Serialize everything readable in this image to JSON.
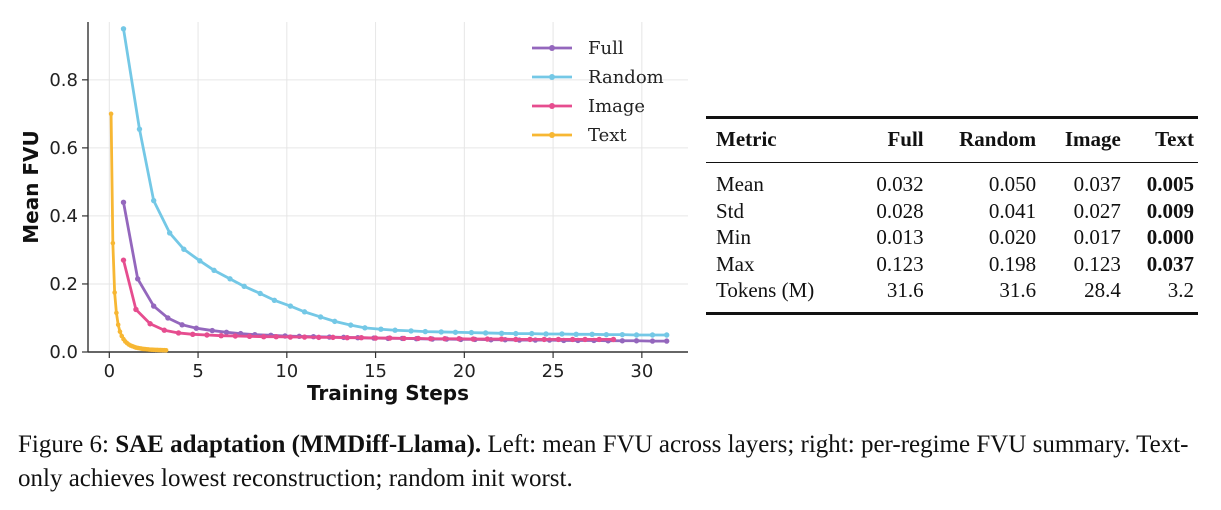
{
  "chart_data": {
    "type": "line",
    "xlabel": "Training Steps",
    "ylabel": "Mean FVU",
    "xlim": [
      -1.2,
      32.6
    ],
    "ylim": [
      0,
      0.97
    ],
    "xticks": [
      0,
      5,
      10,
      15,
      20,
      25,
      30
    ],
    "yticks": [
      0.0,
      0.2,
      0.4,
      0.6,
      0.8
    ],
    "grid": true,
    "legend_position": "top-right",
    "series": [
      {
        "name": "Full",
        "color": "#9467bd",
        "x": [
          0.8,
          1.6,
          2.5,
          3.3,
          4.1,
          4.9,
          5.8,
          6.6,
          7.4,
          8.2,
          9.1,
          9.9,
          10.7,
          11.5,
          12.4,
          13.2,
          14.0,
          14.9,
          15.7,
          16.5,
          17.3,
          18.2,
          19.0,
          19.8,
          20.6,
          21.5,
          22.3,
          23.1,
          24.0,
          24.8,
          25.6,
          26.4,
          27.3,
          28.1,
          28.9,
          29.7,
          30.6,
          31.4
        ],
        "y": [
          0.44,
          0.215,
          0.135,
          0.1,
          0.08,
          0.07,
          0.063,
          0.058,
          0.054,
          0.051,
          0.049,
          0.047,
          0.046,
          0.045,
          0.044,
          0.043,
          0.042,
          0.041,
          0.04,
          0.04,
          0.039,
          0.038,
          0.038,
          0.037,
          0.037,
          0.036,
          0.036,
          0.035,
          0.035,
          0.035,
          0.034,
          0.034,
          0.034,
          0.033,
          0.033,
          0.033,
          0.032,
          0.032
        ]
      },
      {
        "name": "Random",
        "color": "#74c8e6",
        "x": [
          0.8,
          1.7,
          2.5,
          3.4,
          4.2,
          5.1,
          5.9,
          6.8,
          7.6,
          8.5,
          9.3,
          10.2,
          11.0,
          11.9,
          12.7,
          13.6,
          14.4,
          15.3,
          16.1,
          17.0,
          17.8,
          18.7,
          19.5,
          20.4,
          21.2,
          22.1,
          22.9,
          23.8,
          24.6,
          25.5,
          26.3,
          27.2,
          28.0,
          28.9,
          29.7,
          30.6,
          31.4
        ],
        "y": [
          0.95,
          0.655,
          0.445,
          0.35,
          0.302,
          0.268,
          0.24,
          0.215,
          0.193,
          0.172,
          0.152,
          0.135,
          0.118,
          0.103,
          0.09,
          0.079,
          0.071,
          0.067,
          0.064,
          0.062,
          0.06,
          0.059,
          0.058,
          0.057,
          0.056,
          0.055,
          0.054,
          0.054,
          0.053,
          0.053,
          0.052,
          0.052,
          0.051,
          0.051,
          0.05,
          0.05,
          0.05
        ]
      },
      {
        "name": "Image",
        "color": "#e64d8f",
        "x": [
          0.8,
          1.5,
          2.3,
          3.1,
          3.9,
          4.7,
          5.5,
          6.3,
          7.1,
          7.9,
          8.7,
          9.4,
          10.2,
          11.0,
          11.8,
          12.6,
          13.4,
          14.2,
          15.0,
          15.8,
          16.6,
          17.4,
          18.1,
          18.9,
          19.7,
          20.5,
          21.3,
          22.1,
          22.9,
          23.7,
          24.5,
          25.3,
          26.1,
          26.8,
          27.6,
          28.4
        ],
        "y": [
          0.27,
          0.125,
          0.083,
          0.064,
          0.056,
          0.052,
          0.05,
          0.048,
          0.047,
          0.046,
          0.045,
          0.045,
          0.044,
          0.044,
          0.043,
          0.043,
          0.042,
          0.042,
          0.041,
          0.041,
          0.04,
          0.04,
          0.039,
          0.039,
          0.039,
          0.038,
          0.038,
          0.038,
          0.037,
          0.037,
          0.037,
          0.037,
          0.037,
          0.037,
          0.037,
          0.037
        ]
      },
      {
        "name": "Text",
        "color": "#f7b733",
        "x": [
          0.1,
          0.2,
          0.3,
          0.4,
          0.5,
          0.6,
          0.7,
          0.8,
          0.9,
          1.0,
          1.1,
          1.2,
          1.3,
          1.4,
          1.5,
          1.6,
          1.7,
          1.8,
          1.9,
          2.0,
          2.1,
          2.2,
          2.3,
          2.4,
          2.5,
          2.6,
          2.7,
          2.8,
          2.9,
          3.0,
          3.1,
          3.2
        ],
        "y": [
          0.7,
          0.32,
          0.175,
          0.115,
          0.08,
          0.06,
          0.047,
          0.038,
          0.031,
          0.026,
          0.022,
          0.019,
          0.017,
          0.015,
          0.013,
          0.012,
          0.011,
          0.01,
          0.009,
          0.0085,
          0.008,
          0.0075,
          0.007,
          0.0068,
          0.0065,
          0.0062,
          0.006,
          0.0058,
          0.0056,
          0.0054,
          0.0052,
          0.005
        ]
      }
    ]
  },
  "table": {
    "headers": [
      "Metric",
      "Full",
      "Random",
      "Image",
      "Text"
    ],
    "rows": [
      [
        "Mean",
        "0.032",
        "0.050",
        "0.037",
        "0.005"
      ],
      [
        "Std",
        "0.028",
        "0.041",
        "0.027",
        "0.009"
      ],
      [
        "Min",
        "0.013",
        "0.020",
        "0.017",
        "0.000"
      ],
      [
        "Max",
        "0.123",
        "0.198",
        "0.123",
        "0.037"
      ],
      [
        "Tokens (M)",
        "31.6",
        "31.6",
        "28.4",
        "3.2"
      ]
    ],
    "bold_column": 4,
    "bold_rows": [
      0,
      1,
      2,
      3
    ]
  },
  "caption": {
    "prefix": "Figure 6: ",
    "title": "SAE adaptation (MMDiff-Llama).",
    "text": " Left: mean FVU across layers; right: per-regime FVU summary. Text-only achieves lowest reconstruction; random init worst."
  }
}
